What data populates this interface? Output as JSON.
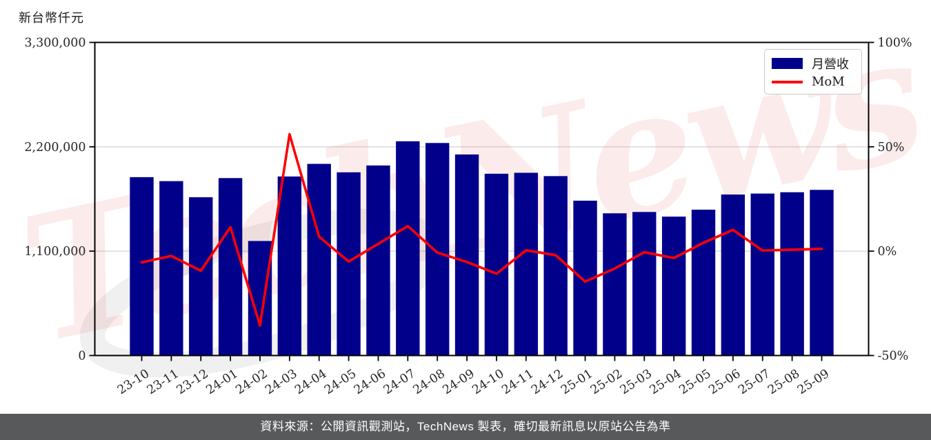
{
  "chart": {
    "left_axis": {
      "tick_labels": [
        "0",
        "1,100,000",
        "2,200,000",
        "3,300,000"
      ],
      "tick_values": [
        0,
        1100000,
        2200000,
        3300000
      ],
      "max": 3300000
    },
    "right_axis": {
      "tick_labels": [
        "-50%",
        "0%",
        "50%",
        "100%"
      ],
      "tick_values": [
        -50,
        0,
        50,
        100
      ],
      "min": -50,
      "max": 100
    },
    "gridline_values": [
      1100000,
      2200000
    ],
    "bar_color": "#00008B",
    "line_color": "#ff0000",
    "grid_color": "#d9d9d9",
    "axis_color": "#000000",
    "tick_text_color": "#262626"
  },
  "chart_data": {
    "type": "bar+line",
    "title": "新台幣仟元",
    "categories": [
      "23-10",
      "23-11",
      "23-12",
      "24-01",
      "24-02",
      "24-03",
      "24-04",
      "24-05",
      "24-06",
      "24-07",
      "24-08",
      "24-09",
      "24-10",
      "24-11",
      "24-12",
      "25-01",
      "25-02",
      "25-03",
      "25-04",
      "25-05",
      "25-06",
      "25-07",
      "25-08",
      "25-09"
    ],
    "series": [
      {
        "name": "月營收",
        "type": "bar",
        "axis": "left",
        "unit": "新台幣仟元",
        "color": "#00008B",
        "values": [
          1880000,
          1838000,
          1668000,
          1870000,
          1207000,
          1887000,
          2020000,
          1931000,
          2003000,
          2258000,
          2240000,
          2119000,
          1916000,
          1926000,
          1891000,
          1632000,
          1499000,
          1513000,
          1464000,
          1537000,
          1697000,
          1707000,
          1721000,
          1746000
        ]
      },
      {
        "name": "MoM",
        "type": "line",
        "axis": "right",
        "unit": "%",
        "color": "#ff0000",
        "values": [
          -5.4,
          -2.3,
          -9.4,
          11.5,
          -35.6,
          56.0,
          6.9,
          -5.0,
          3.5,
          12.0,
          -0.7,
          -5.2,
          -10.8,
          0.4,
          -1.9,
          -14.6,
          -8.3,
          -0.5,
          -3.3,
          4.0,
          10.2,
          0.3,
          0.7,
          1.1
        ]
      }
    ],
    "left_ylim": [
      0,
      3300000
    ],
    "right_ylim": [
      -50,
      100
    ],
    "legend_position": "top-right",
    "grid": "horizontal"
  },
  "watermark": {
    "text": "TechNews"
  },
  "footer": {
    "text": "資料來源：公開資訊觀測站，TechNews 製表，確切最新訊息以原站公告為準"
  }
}
